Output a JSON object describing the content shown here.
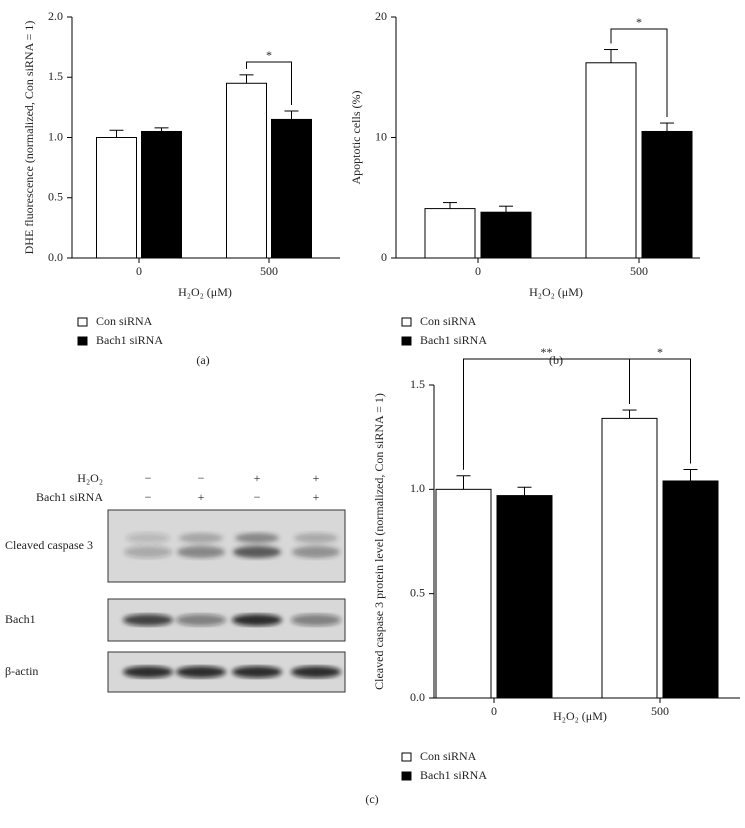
{
  "chart_data": [
    {
      "type": "bar",
      "panel": "(a)",
      "ylabel": "DHE fluorescence (normalized, Con siRNA = 1)",
      "xlabel": "H₂O₂ (μM)",
      "categories": [
        "0",
        "500"
      ],
      "series": [
        {
          "name": "Con siRNA",
          "color": "#ffffff",
          "values": [
            1.0,
            1.45
          ],
          "errors": [
            0.06,
            0.07
          ]
        },
        {
          "name": "Bach1 siRNA",
          "color": "#000000",
          "values": [
            1.05,
            1.15
          ],
          "errors": [
            0.03,
            0.07
          ]
        }
      ],
      "ylim": [
        0,
        2
      ],
      "yticks": [
        {
          "value": 0,
          "label": "0.0"
        },
        0.5,
        {
          "value": 1,
          "label": "1.0"
        },
        1.5,
        {
          "value": 2,
          "label": "2.0"
        }
      ],
      "annotations": [
        "*"
      ]
    },
    {
      "type": "bar",
      "panel": "(b)",
      "ylabel": "Apoptotic cells (%)",
      "xlabel": "H₂O₂ (μM)",
      "categories": [
        "0",
        "500"
      ],
      "series": [
        {
          "name": "Con siRNA",
          "color": "#ffffff",
          "values": [
            4.1,
            16.2
          ],
          "errors": [
            0.5,
            1.1
          ]
        },
        {
          "name": "Bach1 siRNA",
          "color": "#000000",
          "values": [
            3.8,
            10.5
          ],
          "errors": [
            0.5,
            0.7
          ]
        }
      ],
      "ylim": [
        0,
        20
      ],
      "yticks": [
        0,
        10,
        20
      ],
      "annotations": [
        "*"
      ]
    },
    {
      "type": "bar",
      "panel": "(c)",
      "ylabel": "Cleaved caspase 3 protein level (normalized, Con siRNA = 1)",
      "xlabel": "H₂O₂ (μM)",
      "categories": [
        "0",
        "500"
      ],
      "series": [
        {
          "name": "Con siRNA",
          "color": "#ffffff",
          "values": [
            1.0,
            1.34
          ],
          "errors": [
            0.065,
            0.04
          ]
        },
        {
          "name": "Bach1 siRNA",
          "color": "#000000",
          "values": [
            0.97,
            1.04
          ],
          "errors": [
            0.04,
            0.055
          ]
        }
      ],
      "ylim": [
        0,
        1.5
      ],
      "yticks": [
        {
          "value": 0,
          "label": "0.0"
        },
        0.5,
        {
          "value": 1,
          "label": "1.0"
        },
        1.5
      ],
      "annotations": [
        "**",
        "*"
      ]
    }
  ],
  "blot": {
    "conditions": [
      {
        "label": "H₂O₂",
        "signs": [
          "−",
          "−",
          "+",
          "+"
        ]
      },
      {
        "label": "Bach1 siRNA",
        "signs": [
          "−",
          "+",
          "−",
          "+"
        ]
      }
    ],
    "bands": [
      "Cleaved caspase 3",
      "Bach1",
      "β-actin"
    ]
  }
}
